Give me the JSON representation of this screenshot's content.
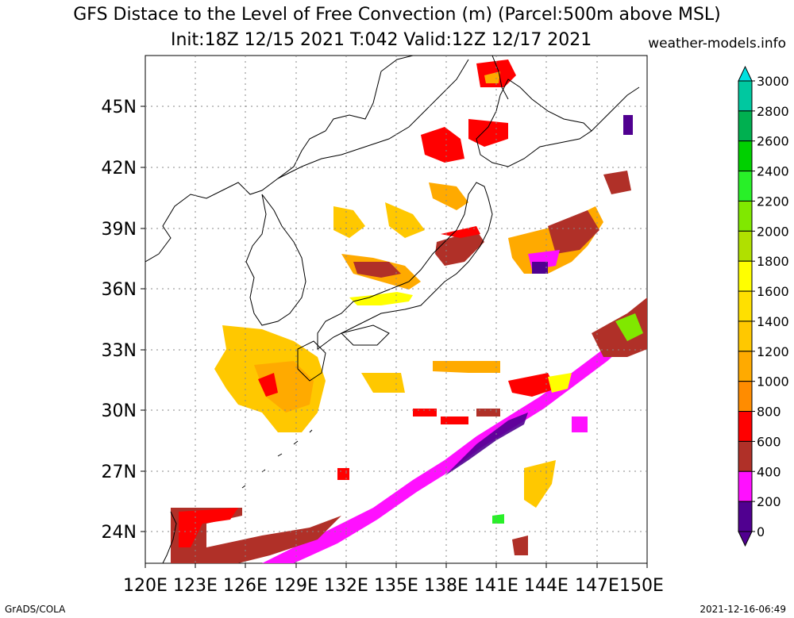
{
  "title": {
    "line1": "GFS Distace to the Level of Free Convection (m) (Parcel:500m above MSL)",
    "line2": "Init:18Z 12/15 2021 T:042 Valid:12Z 12/17 2021",
    "site": "weather-models.info"
  },
  "footer": {
    "left": "GrADS/COLA",
    "right": "2021-12-16-06:49"
  },
  "map": {
    "lon_labels": [
      "120E",
      "123E",
      "126E",
      "129E",
      "132E",
      "135E",
      "138E",
      "141E",
      "144E",
      "147E",
      "150E"
    ],
    "lat_labels": [
      "45N",
      "42N",
      "39N",
      "36N",
      "33N",
      "30N",
      "27N",
      "24N"
    ],
    "lon_range": [
      120,
      150
    ],
    "lat_range": [
      22.5,
      47.5
    ],
    "grid": true
  },
  "colorbar": {
    "labels": [
      "3000",
      "2800",
      "2600",
      "2400",
      "2200",
      "2000",
      "1800",
      "1600",
      "1400",
      "1200",
      "1000",
      "800",
      "600",
      "400",
      "200",
      "0"
    ],
    "colors": [
      "#00e0e0",
      "#00c8a0",
      "#00b050",
      "#00d000",
      "#28f028",
      "#80e800",
      "#b0e000",
      "#ffff00",
      "#ffe000",
      "#ffc800",
      "#ffaa00",
      "#ff8c00",
      "#ff0000",
      "#b03028",
      "#ff10ff",
      "#500090"
    ]
  }
}
